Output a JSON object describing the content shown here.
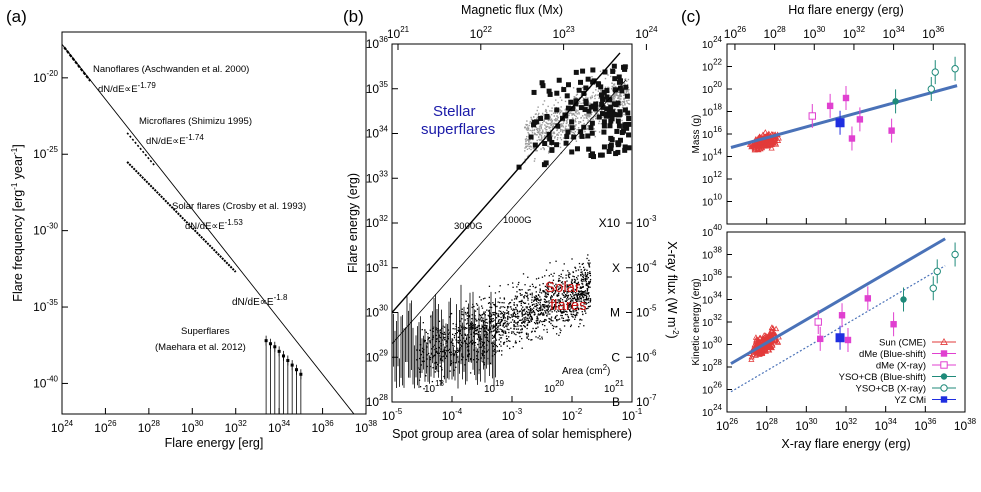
{
  "panels": {
    "a": {
      "label": "(a)"
    },
    "b": {
      "label": "(b)"
    },
    "c": {
      "label": "(c)"
    }
  },
  "chart_data": [
    {
      "type": "line",
      "panel": "a",
      "xlabel": "Flare energy [erg]",
      "ylabel": "Flare frequency [erg",
      "ylabel_units": [
        "-1",
        " year",
        "-1",
        "]"
      ],
      "x_scale": "log",
      "y_scale": "log",
      "xlim_exp": [
        24,
        38
      ],
      "ylim_exp": [
        -42,
        -17
      ],
      "x_ticks": [
        {
          "base": "10",
          "exp": "24"
        },
        {
          "base": "10",
          "exp": "26"
        },
        {
          "base": "10",
          "exp": "28"
        },
        {
          "base": "10",
          "exp": "30"
        },
        {
          "base": "10",
          "exp": "32"
        },
        {
          "base": "10",
          "exp": "34"
        },
        {
          "base": "10",
          "exp": "36"
        },
        {
          "base": "10",
          "exp": "38"
        }
      ],
      "y_ticks": [
        {
          "base": "10",
          "exp": "-20"
        },
        {
          "base": "10",
          "exp": "-25"
        },
        {
          "base": "10",
          "exp": "-30"
        },
        {
          "base": "10",
          "exp": "-35"
        },
        {
          "base": "10",
          "exp": "-40"
        }
      ],
      "reference_line": {
        "label_base": "dN/dE∝E",
        "label_exp": "-1.8",
        "x_exp": [
          24,
          37.5
        ],
        "slope": -1.8,
        "y_at_24": -17.8
      },
      "series": [
        {
          "label": "Nanoflares (Aschwanden et al. 2000)",
          "power_label_base": "dN/dE∝E",
          "power_label_exp": "-1.79",
          "x_exp": [
            24.1,
            25.3
          ],
          "y_exp": [
            -18.0,
            -20.2
          ]
        },
        {
          "label": "Microflares (Shimizu 1995)",
          "power_label_base": "dN/dE∝E",
          "power_label_exp": "-1.74",
          "x_exp": [
            27.0,
            28.3
          ],
          "y_exp": [
            -23.6,
            -25.8
          ]
        },
        {
          "label": "Solar flares (Crosby et al. 1993)",
          "power_label_base": "dN/dE∝E",
          "power_label_exp": "-1.53",
          "x_exp": [
            27.0,
            32.0
          ],
          "y_exp": [
            -25.5,
            -32.7
          ]
        },
        {
          "label": "Superflares",
          "label2": "(Maehara et al. 2012)",
          "x_exp": [
            33.4,
            33.6,
            33.8,
            34.0,
            34.2,
            34.4,
            34.6,
            34.8,
            35.0
          ],
          "y_exp": [
            -37.2,
            -37.4,
            -37.6,
            -37.9,
            -38.2,
            -38.5,
            -38.8,
            -39.1,
            -39.4
          ]
        }
      ]
    },
    {
      "type": "scatter",
      "panel": "b",
      "xlabel": "Spot group area (area of solar hemisphere)",
      "ylabel": "Flare energy (erg)",
      "top_xlabel": "Magnetic flux (Mx)",
      "right_ylabel": "X-ray flux (W m",
      "right_ylabel_exp": "-2",
      "right_ylabel_close": ")",
      "inner_area_label": "Area (cm",
      "inner_area_label_exp": "2",
      "inner_area_label_close": ")",
      "x_ticks": [
        {
          "base": "10",
          "exp": "-5"
        },
        {
          "base": "10",
          "exp": "-4"
        },
        {
          "base": "10",
          "exp": "-3"
        },
        {
          "base": "10",
          "exp": "-2"
        },
        {
          "base": "10",
          "exp": "-1"
        }
      ],
      "y_ticks": [
        {
          "base": "10",
          "exp": "28"
        },
        {
          "base": "10",
          "exp": "29"
        },
        {
          "base": "10",
          "exp": "30"
        },
        {
          "base": "10",
          "exp": "31"
        },
        {
          "base": "10",
          "exp": "32"
        },
        {
          "base": "10",
          "exp": "33"
        },
        {
          "base": "10",
          "exp": "34"
        },
        {
          "base": "10",
          "exp": "35"
        },
        {
          "base": "10",
          "exp": "36"
        }
      ],
      "top_ticks": [
        {
          "base": "10",
          "exp": "21"
        },
        {
          "base": "10",
          "exp": "22"
        },
        {
          "base": "10",
          "exp": "23"
        },
        {
          "base": "10",
          "exp": "24"
        }
      ],
      "area_ticks": [
        {
          "base": "10",
          "exp": "18"
        },
        {
          "base": "10",
          "exp": "19"
        },
        {
          "base": "10",
          "exp": "20"
        },
        {
          "base": "10",
          "exp": "21"
        }
      ],
      "goes_classes": [
        {
          "cls": "X10",
          "flux_base": "10",
          "flux_exp": "-3",
          "y_exp": 32
        },
        {
          "cls": "X",
          "flux_base": "10",
          "flux_exp": "-4",
          "y_exp": 31
        },
        {
          "cls": "M",
          "flux_base": "10",
          "flux_exp": "-5",
          "y_exp": 30
        },
        {
          "cls": "C",
          "flux_base": "10",
          "flux_exp": "-6",
          "y_exp": 29
        },
        {
          "cls": "B",
          "flux_base": "10",
          "flux_exp": "-7",
          "y_exp": 28
        }
      ],
      "field_lines": [
        {
          "label": "3000G",
          "x_exp": [
            -5,
            -1.2
          ],
          "y_exp": [
            30.0,
            35.8
          ]
        },
        {
          "label": "1000G",
          "x_exp": [
            -5,
            -1.1
          ],
          "y_exp": [
            29.3,
            35.2
          ]
        }
      ],
      "stellar_label": [
        "Stellar",
        "superflares"
      ],
      "solar_label": [
        "Solar",
        "flares"
      ],
      "colors": {
        "stellar": "#1a1aa8",
        "solar": "#cc1111"
      }
    },
    {
      "type": "scatter",
      "panel": "c",
      "top_xlabel": "Hα flare energy (erg)",
      "xlabel": "X-ray flare energy (erg)",
      "top_ylabel": "Mass (g)",
      "bottom_ylabel": "Kinetic energy (erg)",
      "x_ticks": [
        {
          "base": "10",
          "exp": "26"
        },
        {
          "base": "10",
          "exp": "28"
        },
        {
          "base": "10",
          "exp": "30"
        },
        {
          "base": "10",
          "exp": "32"
        },
        {
          "base": "10",
          "exp": "34"
        },
        {
          "base": "10",
          "exp": "36"
        },
        {
          "base": "10",
          "exp": "38"
        }
      ],
      "top_ticks": [
        {
          "base": "10",
          "exp": "26"
        },
        {
          "base": "10",
          "exp": "28"
        },
        {
          "base": "10",
          "exp": "30"
        },
        {
          "base": "10",
          "exp": "32"
        },
        {
          "base": "10",
          "exp": "34"
        },
        {
          "base": "10",
          "exp": "36"
        }
      ],
      "mass_ticks": [
        {
          "base": "10",
          "exp": "10"
        },
        {
          "base": "10",
          "exp": "12"
        },
        {
          "base": "10",
          "exp": "14"
        },
        {
          "base": "10",
          "exp": "16"
        },
        {
          "base": "10",
          "exp": "18"
        },
        {
          "base": "10",
          "exp": "20"
        },
        {
          "base": "10",
          "exp": "22"
        },
        {
          "base": "10",
          "exp": "24"
        }
      ],
      "ke_ticks": [
        {
          "base": "10",
          "exp": "24"
        },
        {
          "base": "10",
          "exp": "26"
        },
        {
          "base": "10",
          "exp": "28"
        },
        {
          "base": "10",
          "exp": "30"
        },
        {
          "base": "10",
          "exp": "32"
        },
        {
          "base": "10",
          "exp": "34"
        },
        {
          "base": "10",
          "exp": "36"
        },
        {
          "base": "10",
          "exp": "38"
        },
        {
          "base": "10",
          "exp": "40"
        }
      ],
      "fit_color": "#4a72b8",
      "legend_placement": "bottom-right",
      "legend": [
        {
          "name": "Sun (CME)",
          "marker": "open-triangle",
          "color": "#e23a3a"
        },
        {
          "name": "dMe (Blue-shift)",
          "marker": "filled-square",
          "color": "#e040d0"
        },
        {
          "name": "dMe (X-ray)",
          "marker": "open-square",
          "color": "#e040d0"
        },
        {
          "name": "YSO+CB (Blue-shift)",
          "marker": "filled-circle",
          "color": "#1f8a7a"
        },
        {
          "name": "YSO+CB (X-ray)",
          "marker": "open-circle",
          "color": "#1f8a7a"
        },
        {
          "name": "YZ CMi",
          "marker": "filled-square",
          "color": "#1f2ee0"
        }
      ],
      "mass_points": [
        {
          "series": "dMe (Blue-shift)",
          "x_exp": 31.2,
          "y_exp": 18.5
        },
        {
          "series": "dMe (Blue-shift)",
          "x_exp": 32.0,
          "y_exp": 19.2
        },
        {
          "series": "dMe (Blue-shift)",
          "x_exp": 32.3,
          "y_exp": 15.6
        },
        {
          "series": "dMe (Blue-shift)",
          "x_exp": 32.7,
          "y_exp": 17.3
        },
        {
          "series": "dMe (Blue-shift)",
          "x_exp": 34.3,
          "y_exp": 16.3
        },
        {
          "series": "dMe (X-ray)",
          "x_exp": 30.3,
          "y_exp": 17.6
        },
        {
          "series": "YSO+CB (Blue-shift)",
          "x_exp": 34.5,
          "y_exp": 18.9
        },
        {
          "series": "YSO+CB (X-ray)",
          "x_exp": 36.3,
          "y_exp": 20.0
        },
        {
          "series": "YSO+CB (X-ray)",
          "x_exp": 36.5,
          "y_exp": 21.5
        },
        {
          "series": "YSO+CB (X-ray)",
          "x_exp": 37.5,
          "y_exp": 21.8
        },
        {
          "series": "YZ CMi",
          "x_exp": 31.7,
          "y_exp": 17.0
        }
      ],
      "ke_points": [
        {
          "series": "dMe (Blue-shift)",
          "x_exp": 30.7,
          "y_exp": 30.5
        },
        {
          "series": "dMe (Blue-shift)",
          "x_exp": 31.8,
          "y_exp": 32.6
        },
        {
          "series": "dMe (Blue-shift)",
          "x_exp": 32.1,
          "y_exp": 30.4
        },
        {
          "series": "dMe (Blue-shift)",
          "x_exp": 33.1,
          "y_exp": 34.1
        },
        {
          "series": "dMe (Blue-shift)",
          "x_exp": 34.4,
          "y_exp": 31.8
        },
        {
          "series": "dMe (X-ray)",
          "x_exp": 30.6,
          "y_exp": 32.0
        },
        {
          "series": "YSO+CB (Blue-shift)",
          "x_exp": 34.9,
          "y_exp": 34.0
        },
        {
          "series": "YSO+CB (X-ray)",
          "x_exp": 36.4,
          "y_exp": 35.0
        },
        {
          "series": "YSO+CB (X-ray)",
          "x_exp": 36.6,
          "y_exp": 36.5
        },
        {
          "series": "YSO+CB (X-ray)",
          "x_exp": 37.5,
          "y_exp": 38.0
        },
        {
          "series": "YZ CMi",
          "x_exp": 31.7,
          "y_exp": 30.6
        }
      ],
      "mass_fit": {
        "x_exp": [
          26.2,
          37.6
        ],
        "y_exp": [
          14.8,
          20.3
        ]
      },
      "ke_fit": {
        "x_exp": [
          26.2,
          37.0
        ],
        "y_exp": [
          28.3,
          39.4
        ]
      },
      "ke_dotted": {
        "x_exp": [
          26.2,
          37.0
        ],
        "y_exp": [
          25.8,
          37.0
        ]
      }
    }
  ]
}
